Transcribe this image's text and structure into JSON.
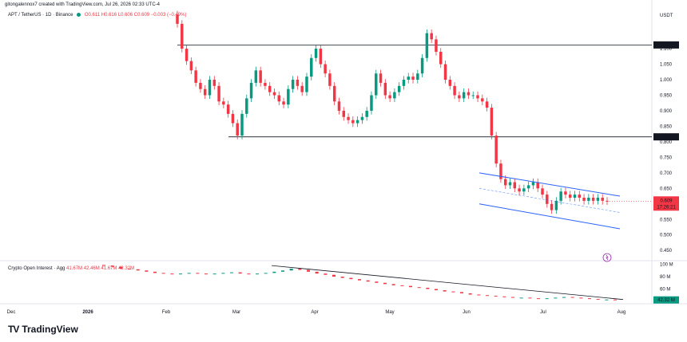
{
  "header": {
    "credit": "gitongalennox7 created with TradingView.com, Jul 26, 2026 02:33 UTC-4",
    "symbol": "APT / TetherUS · 1D · Binance",
    "ohlc": "O0.611  H0.616  L0.606  C0.609  −0.003 (−0.49%)"
  },
  "indicator": {
    "name": "Crypto Open Interest · Agg",
    "values": "41.67M  42.46M  41.67M  42.32M"
  },
  "brand": {
    "logo_mark": "TV",
    "name": "TradingView"
  },
  "colors": {
    "up": "#089981",
    "down": "#f23645",
    "channel": "#2962ff",
    "level": "#131722",
    "trendline": "#131722"
  },
  "chart_data": [
    {
      "type": "candlestick",
      "currency": "USDT",
      "y_ticks": [
        "1.100",
        "1.050",
        "1.000",
        "0.950",
        "0.900",
        "0.850",
        "0.800",
        "0.750",
        "0.700",
        "0.650",
        "0.600",
        "0.550",
        "0.500",
        "0.450"
      ],
      "ylim": [
        0.43,
        1.19
      ],
      "x_ticks": [
        "Dec",
        "2026",
        "Feb",
        "Mar",
        "Apr",
        "May",
        "Jun",
        "Jul",
        "Aug"
      ],
      "horizontal_levels": [
        {
          "value": 1.112,
          "label": "1.112"
        },
        {
          "value": 0.816,
          "label": "0.816"
        }
      ],
      "last_price": {
        "value": 0.609,
        "label": "0.609",
        "countdown": "17:26:21"
      },
      "closes": [
        1.18,
        1.1,
        1.06,
        1.03,
        0.99,
        0.97,
        0.95,
        1.0,
        0.98,
        0.93,
        0.92,
        0.89,
        0.86,
        0.82,
        0.89,
        0.94,
        0.99,
        1.03,
        0.99,
        0.98,
        0.96,
        0.95,
        0.93,
        0.92,
        0.97,
        1.0,
        0.98,
        0.96,
        1.01,
        1.07,
        1.1,
        1.05,
        1.02,
        0.98,
        0.93,
        0.9,
        0.88,
        0.87,
        0.86,
        0.87,
        0.88,
        0.9,
        0.95,
        1.02,
        0.99,
        0.95,
        0.94,
        0.96,
        0.98,
        1.0,
        1.01,
        1.0,
        1.02,
        1.07,
        1.15,
        1.13,
        1.09,
        1.05,
        1.0,
        0.98,
        0.95,
        0.94,
        0.96,
        0.95,
        0.95,
        0.94,
        0.93,
        0.91,
        0.82,
        0.73,
        0.68,
        0.66,
        0.67,
        0.65,
        0.64,
        0.65,
        0.66,
        0.67,
        0.65,
        0.63,
        0.6,
        0.58,
        0.61,
        0.64,
        0.63,
        0.62,
        0.63,
        0.62,
        0.61,
        0.62,
        0.61,
        0.62,
        0.61,
        0.609
      ],
      "channel": {
        "upper": [
          [
            0.7,
            0.625
          ]
        ],
        "lower": [
          [
            0.6,
            0.52
          ]
        ],
        "note": ""
      }
    },
    {
      "type": "line",
      "name": "Crypto Open Interest",
      "y_ticks": [
        "100 M",
        "80 M",
        "60 M"
      ],
      "last_value": "42.32 M",
      "values": [
        98,
        96,
        93,
        92,
        90,
        88,
        86,
        85,
        84,
        85,
        86,
        85,
        84,
        85,
        86,
        87,
        85,
        84,
        85,
        86,
        88,
        90,
        93,
        91,
        88,
        85,
        83,
        80,
        78,
        76,
        74,
        72,
        70,
        68,
        66,
        65,
        63,
        62,
        60,
        58,
        56,
        55,
        53,
        51,
        50,
        49,
        48,
        47,
        46,
        46,
        45,
        44,
        45,
        46,
        47,
        46,
        45,
        44,
        43,
        43,
        42.32
      ]
    }
  ]
}
